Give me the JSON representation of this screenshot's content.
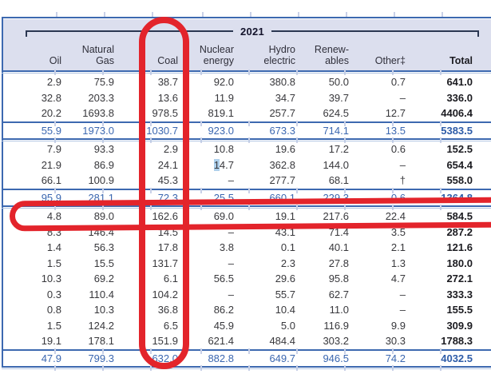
{
  "table": {
    "year_label": "2021",
    "columns": [
      {
        "key": "oil",
        "line1": "",
        "line2": "Oil",
        "bold": false
      },
      {
        "key": "natural_gas",
        "line1": "Natural",
        "line2": "Gas",
        "bold": false
      },
      {
        "key": "coal",
        "line1": "",
        "line2": "Coal",
        "bold": false
      },
      {
        "key": "nuclear",
        "line1": "Nuclear",
        "line2": "energy",
        "bold": false
      },
      {
        "key": "hydro",
        "line1": "Hydro",
        "line2": "electric",
        "bold": false
      },
      {
        "key": "renewables",
        "line1": "Renew-",
        "line2": "ables",
        "bold": false
      },
      {
        "key": "other",
        "line1": "",
        "line2": "Other‡",
        "bold": false
      },
      {
        "key": "total",
        "line1": "",
        "line2": "Total",
        "bold": true
      }
    ],
    "rows": [
      {
        "type": "data",
        "values": [
          "2.9",
          "75.9",
          "38.7",
          "92.0",
          "380.8",
          "50.0",
          "0.7",
          "641.0"
        ]
      },
      {
        "type": "data",
        "values": [
          "32.8",
          "203.3",
          "13.6",
          "11.9",
          "34.7",
          "39.7",
          "–",
          "336.0"
        ]
      },
      {
        "type": "data",
        "values": [
          "20.2",
          "1693.8",
          "978.5",
          "819.1",
          "257.7",
          "624.5",
          "12.7",
          "4406.4"
        ]
      },
      {
        "type": "total",
        "values": [
          "55.9",
          "1973.0",
          "1030.7",
          "923.0",
          "673.3",
          "714.1",
          "13.5",
          "5383.5"
        ]
      },
      {
        "type": "data",
        "values": [
          "7.9",
          "93.3",
          "2.9",
          "10.8",
          "19.6",
          "17.2",
          "0.6",
          "152.5"
        ]
      },
      {
        "type": "data",
        "values": [
          "21.9",
          "86.9",
          "24.1",
          "14.7",
          "362.8",
          "144.0",
          "–",
          "654.4"
        ],
        "highlight_cell": 3,
        "highlight_chars": 1
      },
      {
        "type": "data",
        "values": [
          "66.1",
          "100.9",
          "45.3",
          "–",
          "277.7",
          "68.1",
          "†",
          "558.0"
        ]
      },
      {
        "type": "total",
        "values": [
          "95.9",
          "281.1",
          "72.3",
          "25.5",
          "660.1",
          "229.3",
          "0.6",
          "1364.8"
        ]
      },
      {
        "type": "data",
        "values": [
          "4.8",
          "89.0",
          "162.6",
          "69.0",
          "19.1",
          "217.6",
          "22.4",
          "584.5"
        ],
        "red_boxed": true
      },
      {
        "type": "data",
        "values": [
          "8.3",
          "146.4",
          "14.5",
          "–",
          "43.1",
          "71.4",
          "3.5",
          "287.2"
        ]
      },
      {
        "type": "data",
        "values": [
          "1.4",
          "56.3",
          "17.8",
          "3.8",
          "0.1",
          "40.1",
          "2.1",
          "121.6"
        ]
      },
      {
        "type": "data",
        "values": [
          "1.5",
          "15.5",
          "131.7",
          "–",
          "2.3",
          "27.8",
          "1.3",
          "180.0"
        ]
      },
      {
        "type": "data",
        "values": [
          "10.3",
          "69.2",
          "6.1",
          "56.5",
          "29.6",
          "95.8",
          "4.7",
          "272.1"
        ]
      },
      {
        "type": "data",
        "values": [
          "0.3",
          "110.4",
          "104.2",
          "–",
          "55.7",
          "62.7",
          "–",
          "333.3"
        ]
      },
      {
        "type": "data",
        "values": [
          "0.8",
          "10.3",
          "36.8",
          "86.2",
          "10.4",
          "11.0",
          "–",
          "155.5"
        ]
      },
      {
        "type": "data",
        "values": [
          "1.5",
          "124.2",
          "6.5",
          "45.9",
          "5.0",
          "116.9",
          "9.9",
          "309.9"
        ]
      },
      {
        "type": "data",
        "values": [
          "19.1",
          "178.1",
          "151.9",
          "621.4",
          "484.4",
          "303.2",
          "30.3",
          "1788.3"
        ]
      },
      {
        "type": "total",
        "values": [
          "47.9",
          "799.3",
          "632.0",
          "882.8",
          "649.7",
          "946.5",
          "74.2",
          "4032.5"
        ]
      }
    ]
  },
  "annotations": {
    "coal_column_oval": {
      "shape": "oval",
      "color": "#e3242b",
      "marks": "Coal column"
    },
    "row_box": {
      "shape": "rounded-box",
      "color": "#e3242b",
      "marks": "row 4.8 89.0 162.6 69.0 19.1 217.6 22.4 584.5"
    },
    "selection_highlight": {
      "color": "#aed0ec",
      "marks": "digit 1 of 14.7"
    }
  },
  "colors": {
    "header_band": "#dcdfee",
    "rule_blue": "#3d69b0",
    "total_text_blue": "#3b67b0",
    "annotation_red": "#e3242b",
    "tick_lavender": "#c9d1e8"
  }
}
